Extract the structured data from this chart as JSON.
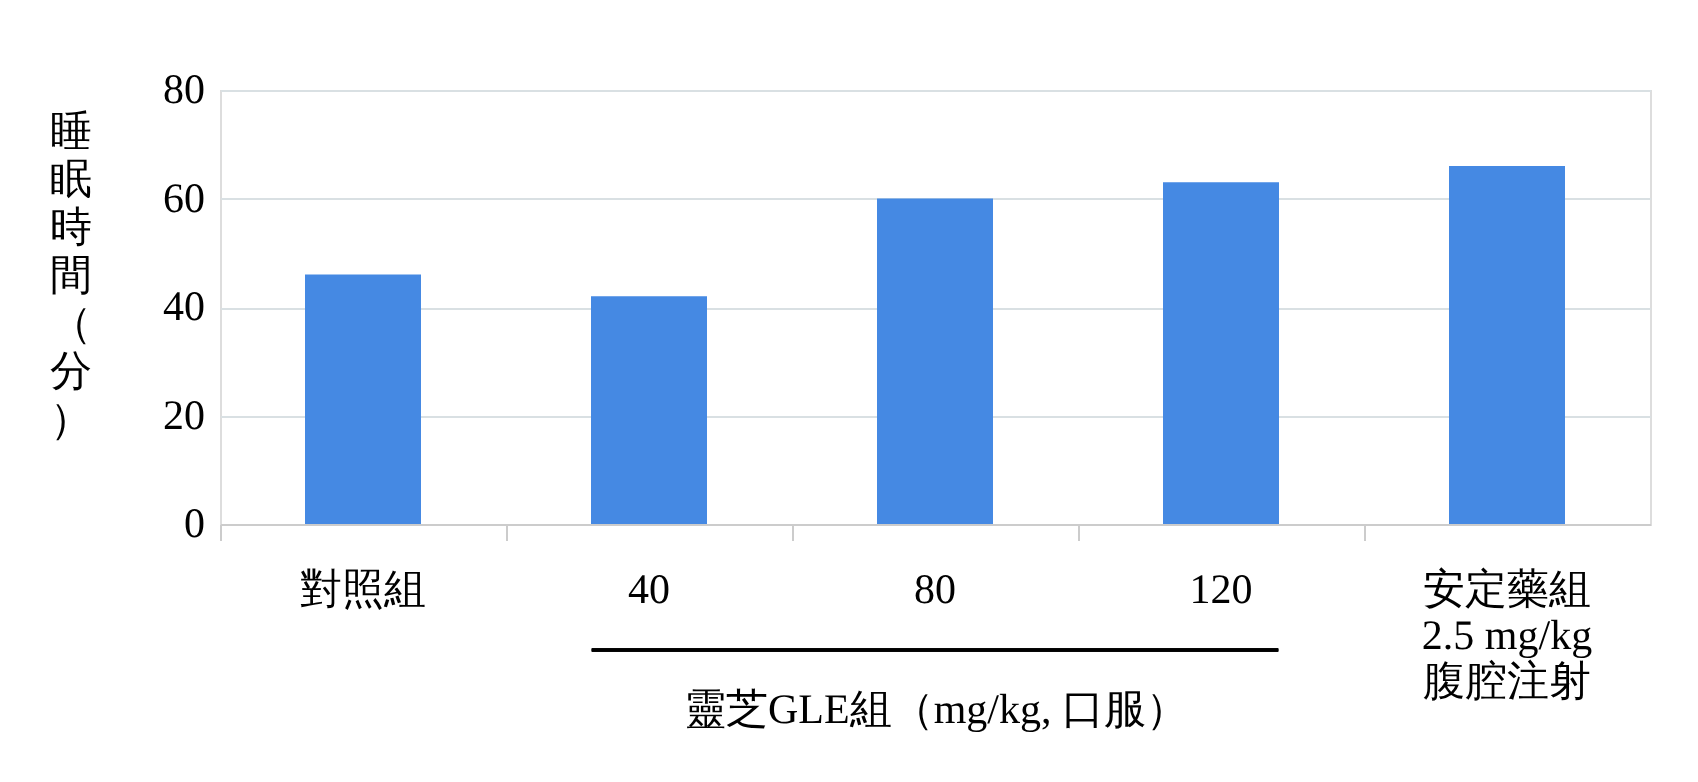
{
  "chart_data": {
    "type": "bar",
    "categories": [
      "對照組",
      "40",
      "80",
      "120",
      "安定藥組\n2.5 mg/kg\n腹腔注射"
    ],
    "values": [
      46,
      42,
      60,
      63,
      66
    ],
    "color": "#4589e3",
    "ylabel": "睡眠時間（分）",
    "xlabel": "靈芝GLE組（mg/kg, 口服）",
    "ylim": [
      0,
      80
    ],
    "yticks": [
      0,
      20,
      40,
      60,
      80
    ],
    "grid": "y"
  }
}
